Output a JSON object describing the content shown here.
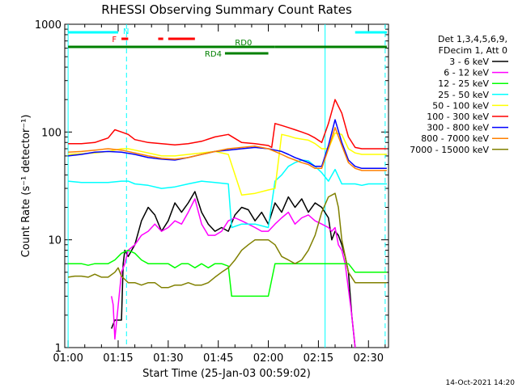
{
  "chart_data": {
    "type": "line",
    "title": "RHESSI Observing Summary Count Rates",
    "xlabel": "Start Time (25-Jan-03 00:59:02)",
    "ylabel": "Count Rate (s⁻¹ detector⁻¹)",
    "yscale": "log",
    "xlim": [
      -1,
      96
    ],
    "ylim": [
      1,
      1000
    ],
    "x_ticks": [
      {
        "value": 0,
        "label": "01:00"
      },
      {
        "value": 15,
        "label": "01:15"
      },
      {
        "value": 30,
        "label": "01:30"
      },
      {
        "value": 45,
        "label": "01:45"
      },
      {
        "value": 60,
        "label": "02:00"
      },
      {
        "value": 75,
        "label": "02:15"
      },
      {
        "value": 90,
        "label": "02:30"
      }
    ],
    "y_ticks": [
      {
        "value": 1,
        "label": "1"
      },
      {
        "value": 10,
        "label": "10"
      },
      {
        "value": 100,
        "label": "100"
      },
      {
        "value": 1000,
        "label": "1000"
      }
    ],
    "legend_header": [
      "Det 1,3,4,5,6,9,",
      "FDecim 1, Att 0"
    ],
    "series": [
      {
        "name": "3 - 6 keV",
        "color": "#000000",
        "x": [
          13,
          14,
          16,
          16.5,
          17,
          18,
          20,
          22,
          24,
          26,
          28,
          30,
          32,
          34,
          36,
          38,
          40,
          42,
          44,
          46,
          48,
          50,
          52,
          54,
          56,
          58,
          60,
          62,
          64,
          66,
          68,
          70,
          72,
          74,
          76,
          78,
          79,
          80,
          81,
          82,
          83,
          84,
          85,
          86
        ],
        "y": [
          1.5,
          1.8,
          1.8,
          6,
          8,
          7,
          9,
          15,
          20,
          17,
          12,
          15,
          22,
          18,
          22,
          28,
          18,
          14,
          12,
          13,
          12,
          17,
          20,
          19,
          15,
          18,
          14,
          22,
          18,
          25,
          20,
          24,
          18,
          22,
          20,
          16,
          10,
          12,
          11,
          9,
          7,
          5,
          2,
          1
        ]
      },
      {
        "name": "6 - 12 keV",
        "color": "#ff00ff",
        "x": [
          13,
          13.5,
          14,
          16,
          17,
          18,
          20,
          22,
          24,
          26,
          28,
          30,
          32,
          34,
          36,
          38,
          40,
          42,
          44,
          46,
          48,
          50,
          52,
          54,
          56,
          58,
          60,
          62,
          64,
          66,
          68,
          70,
          72,
          74,
          76,
          78,
          79,
          80,
          81,
          82,
          83,
          84,
          85,
          86
        ],
        "y": [
          3,
          2.5,
          1.2,
          5,
          6,
          8,
          9,
          11,
          12,
          14,
          12,
          13,
          15,
          14,
          18,
          24,
          14,
          11,
          11,
          12,
          15,
          16,
          15,
          14,
          13,
          12,
          12,
          14,
          16,
          18,
          14,
          16,
          17,
          15,
          14,
          13,
          12,
          13,
          9,
          8,
          6,
          3.5,
          2,
          1
        ]
      },
      {
        "name": "12 - 25 keV",
        "color": "#00ff00",
        "x": [
          0,
          2,
          4,
          6,
          8,
          10,
          12,
          14,
          16,
          18,
          20,
          22,
          24,
          26,
          28,
          30,
          32,
          34,
          36,
          38,
          40,
          42,
          44,
          46,
          48,
          49,
          50,
          52,
          54,
          56,
          58,
          60,
          62,
          64,
          66,
          68,
          70,
          72,
          74,
          76,
          78,
          80,
          82,
          84,
          86,
          88,
          90,
          92,
          94,
          95.5
        ],
        "y": [
          6,
          6,
          6,
          5.8,
          6,
          6,
          6,
          6.5,
          7.5,
          8,
          7.5,
          6.5,
          6,
          6,
          6,
          6,
          5.5,
          6,
          6,
          5.5,
          6,
          5.5,
          6,
          6,
          5.7,
          3,
          3,
          3,
          3,
          3,
          3,
          3,
          6,
          6,
          6,
          6,
          6,
          6,
          6,
          6,
          6,
          6,
          6,
          6,
          5,
          5,
          5,
          5,
          5,
          5
        ]
      },
      {
        "name": "25 - 50 keV",
        "color": "#00ffff",
        "x": [
          0,
          4,
          8,
          12,
          16,
          18,
          20,
          24,
          28,
          32,
          36,
          40,
          44,
          48,
          49,
          52,
          56,
          60,
          62,
          64,
          66,
          68,
          70,
          72,
          74,
          76,
          78,
          80,
          82,
          84,
          86,
          88,
          90,
          92,
          94,
          95.5
        ],
        "y": [
          35,
          34,
          34,
          34,
          35,
          35,
          33,
          32,
          30,
          31,
          33,
          35,
          34,
          33,
          13,
          14,
          14,
          13,
          35,
          40,
          48,
          52,
          55,
          54,
          48,
          42,
          35,
          45,
          33,
          33,
          33,
          32,
          33,
          33,
          33,
          33
        ]
      },
      {
        "name": "50 - 100 keV",
        "color": "#ffff00",
        "x": [
          0,
          4,
          8,
          12,
          16,
          18,
          20,
          24,
          28,
          32,
          36,
          40,
          44,
          48,
          52,
          56,
          60,
          62,
          64,
          66,
          68,
          70,
          72,
          74,
          76,
          78,
          80,
          82,
          84,
          86,
          88,
          90,
          92,
          94,
          95.5
        ],
        "y": [
          62,
          63,
          64,
          66,
          70,
          70,
          68,
          64,
          60,
          60,
          62,
          64,
          66,
          62,
          26,
          27,
          29,
          30,
          95,
          92,
          88,
          86,
          84,
          78,
          70,
          70,
          98,
          95,
          70,
          64,
          62,
          62,
          62,
          62,
          62
        ]
      },
      {
        "name": "100 - 300 keV",
        "color": "#ff0000",
        "x": [
          0,
          4,
          8,
          12,
          14,
          16,
          18,
          20,
          24,
          28,
          32,
          36,
          40,
          44,
          48,
          52,
          56,
          60,
          61,
          62,
          64,
          66,
          68,
          70,
          72,
          74,
          76,
          78,
          80,
          82,
          84,
          86,
          88,
          90,
          92,
          94,
          95.5
        ],
        "y": [
          78,
          78,
          80,
          88,
          105,
          100,
          95,
          85,
          80,
          78,
          76,
          78,
          82,
          90,
          95,
          80,
          78,
          75,
          72,
          120,
          115,
          110,
          105,
          100,
          95,
          88,
          80,
          120,
          200,
          150,
          90,
          72,
          70,
          70,
          70,
          70,
          70
        ]
      },
      {
        "name": "300 - 800 keV",
        "color": "#0000ff",
        "x": [
          0,
          4,
          8,
          12,
          16,
          20,
          24,
          28,
          32,
          36,
          40,
          44,
          48,
          52,
          56,
          60,
          62,
          64,
          66,
          68,
          70,
          72,
          74,
          76,
          78,
          80,
          82,
          84,
          86,
          88,
          90,
          92,
          94,
          95.5
        ],
        "y": [
          60,
          62,
          65,
          66,
          65,
          62,
          58,
          56,
          55,
          58,
          62,
          66,
          68,
          70,
          72,
          70,
          68,
          66,
          62,
          58,
          55,
          52,
          48,
          48,
          75,
          130,
          80,
          55,
          48,
          46,
          46,
          46,
          46,
          46
        ]
      },
      {
        "name": "800 - 7000 keV",
        "color": "#ff8000",
        "x": [
          0,
          4,
          8,
          12,
          16,
          20,
          24,
          28,
          32,
          36,
          40,
          44,
          48,
          52,
          56,
          60,
          62,
          64,
          66,
          68,
          70,
          72,
          74,
          76,
          78,
          80,
          82,
          84,
          86,
          88,
          90,
          92,
          94,
          95.5
        ],
        "y": [
          65,
          66,
          68,
          70,
          68,
          64,
          60,
          57,
          56,
          58,
          62,
          66,
          70,
          72,
          74,
          70,
          66,
          62,
          58,
          55,
          52,
          50,
          46,
          46,
          70,
          110,
          75,
          52,
          46,
          44,
          44,
          44,
          44,
          44
        ]
      },
      {
        "name": "7000 - 15000 keV",
        "color": "#808000",
        "x": [
          0,
          2,
          4,
          6,
          8,
          10,
          12,
          14,
          15,
          16,
          18,
          20,
          22,
          24,
          26,
          28,
          30,
          32,
          34,
          36,
          38,
          40,
          42,
          44,
          46,
          48,
          50,
          52,
          54,
          56,
          58,
          60,
          62,
          64,
          66,
          68,
          70,
          72,
          74,
          76,
          78,
          80,
          81,
          82,
          84,
          86,
          88,
          90,
          92,
          94,
          95.5
        ],
        "y": [
          4.5,
          4.6,
          4.6,
          4.5,
          4.8,
          4.5,
          4.5,
          5,
          5.5,
          4.6,
          4,
          4,
          3.8,
          4,
          4,
          3.6,
          3.6,
          3.8,
          3.8,
          4,
          3.8,
          3.8,
          4,
          4.5,
          5,
          5.5,
          6.5,
          8,
          9,
          10,
          10,
          10,
          9,
          7,
          6.5,
          6,
          6.5,
          8,
          11,
          18,
          25,
          27,
          20,
          10,
          5,
          4,
          4,
          4,
          4,
          4,
          4
        ]
      }
    ],
    "annotations": {
      "bars": [
        {
          "label": "N",
          "color": "#00ffff",
          "segments": [
            [
              0,
              15
            ],
            [
              86,
              95.5
            ]
          ]
        },
        {
          "label": "F",
          "color": "#ff0000",
          "segments": [
            [
              16,
              18
            ],
            [
              27,
              28.5
            ],
            [
              30,
              38
            ]
          ]
        },
        {
          "label": "RD0",
          "color": "#008000",
          "segments": [
            [
              0,
              62
            ],
            [
              62,
              95.5
            ]
          ]
        },
        {
          "label": "RD4",
          "color": "#008000",
          "segments": [
            [
              47,
              60
            ]
          ]
        }
      ],
      "vertical_lines": [
        {
          "x": 0,
          "color": "#00ffff",
          "style": "solid"
        },
        {
          "x": 17.5,
          "color": "#00ffff",
          "style": "dashed"
        },
        {
          "x": 77,
          "color": "#00ffff",
          "style": "solid"
        },
        {
          "x": 95,
          "color": "#00ffff",
          "style": "dashed"
        }
      ]
    },
    "footer_timestamp": "14-Oct-2021 14:20"
  }
}
